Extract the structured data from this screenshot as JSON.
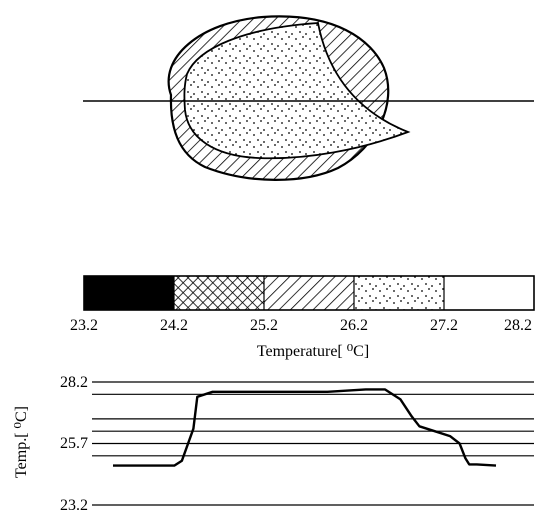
{
  "legend": {
    "ticks": [
      "23.2",
      "24.2",
      "25.2",
      "26.2",
      "27.2",
      "28.2"
    ],
    "axis_label": "Temperature[ ⁰C]",
    "bands": [
      {
        "from": 23.2,
        "to": 24.2,
        "pattern": "solid-black"
      },
      {
        "from": 24.2,
        "to": 25.2,
        "pattern": "crosshatch"
      },
      {
        "from": 25.2,
        "to": 26.2,
        "pattern": "diagonal-hatch"
      },
      {
        "from": 26.2,
        "to": 27.2,
        "pattern": "dotted"
      },
      {
        "from": 27.2,
        "to": 28.2,
        "pattern": "blank"
      }
    ]
  },
  "profile": {
    "ylabel": "Temp.[ ⁰C]",
    "ytick_labels": [
      "28.2",
      "25.7",
      "23.2"
    ]
  },
  "chart_data": {
    "type": "line",
    "title": "",
    "xlabel": "",
    "ylabel": "Temp.[ ⁰C]",
    "ylim": [
      23.2,
      28.2
    ],
    "yticks": [
      23.2,
      25.7,
      28.2
    ],
    "hlines": [
      23.2,
      25.2,
      25.7,
      26.2,
      26.7,
      27.7,
      28.2
    ],
    "series": [
      {
        "name": "",
        "x": [
          0,
          0.16,
          0.18,
          0.21,
          0.22,
          0.26,
          0.36,
          0.46,
          0.56,
          0.66,
          0.71,
          0.75,
          0.78,
          0.8,
          0.84,
          0.88,
          0.905,
          0.92,
          0.93,
          0.95,
          1.0
        ],
        "y": [
          24.8,
          24.8,
          25.0,
          26.3,
          27.6,
          27.8,
          27.8,
          27.8,
          27.8,
          27.9,
          27.9,
          27.5,
          26.8,
          26.4,
          26.2,
          26.0,
          25.7,
          25.1,
          24.85,
          24.85,
          24.8
        ]
      }
    ]
  }
}
